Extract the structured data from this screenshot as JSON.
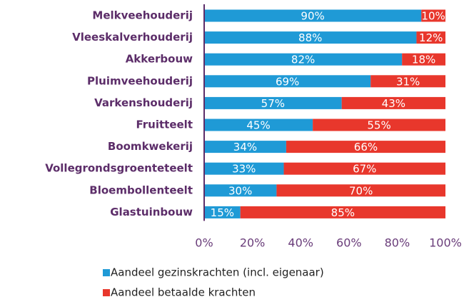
{
  "chart_data": {
    "type": "stacked-bar-horizontal",
    "categories": [
      "Melkveehouderij",
      "Vleeskalverhouderij",
      "Akkerbouw",
      "Pluimveehouderij",
      "Varkenshouderij",
      "Fruitteelt",
      "Boomkwekerij",
      "Vollegrondsgroenteteelt",
      "Bloembollenteelt",
      "Glastuinbouw"
    ],
    "series": [
      {
        "name": "Aandeel gezinskrachten (incl. eigenaar)",
        "color": "#1f9ad6",
        "values": [
          90,
          88,
          82,
          69,
          57,
          45,
          34,
          33,
          30,
          15
        ],
        "value_labels": [
          "90%",
          "88%",
          "82%",
          "69%",
          "57%",
          "45%",
          "34%",
          "33%",
          "30%",
          "15%"
        ]
      },
      {
        "name": "Aandeel betaalde krachten",
        "color": "#e8372c",
        "values": [
          10,
          12,
          18,
          31,
          43,
          55,
          66,
          67,
          70,
          85
        ],
        "value_labels": [
          "10%",
          "12%",
          "18%",
          "31%",
          "43%",
          "55%",
          "66%",
          "67%",
          "70%",
          "85%"
        ]
      }
    ],
    "xlim": [
      0,
      100
    ],
    "xticks": [
      {
        "value": 0,
        "label": "0%"
      },
      {
        "value": 20,
        "label": "20%"
      },
      {
        "value": 40,
        "label": "40%"
      },
      {
        "value": 60,
        "label": "60%"
      },
      {
        "value": 80,
        "label": "80%"
      },
      {
        "value": 100,
        "label": "100%"
      }
    ],
    "legend": "bottom"
  }
}
